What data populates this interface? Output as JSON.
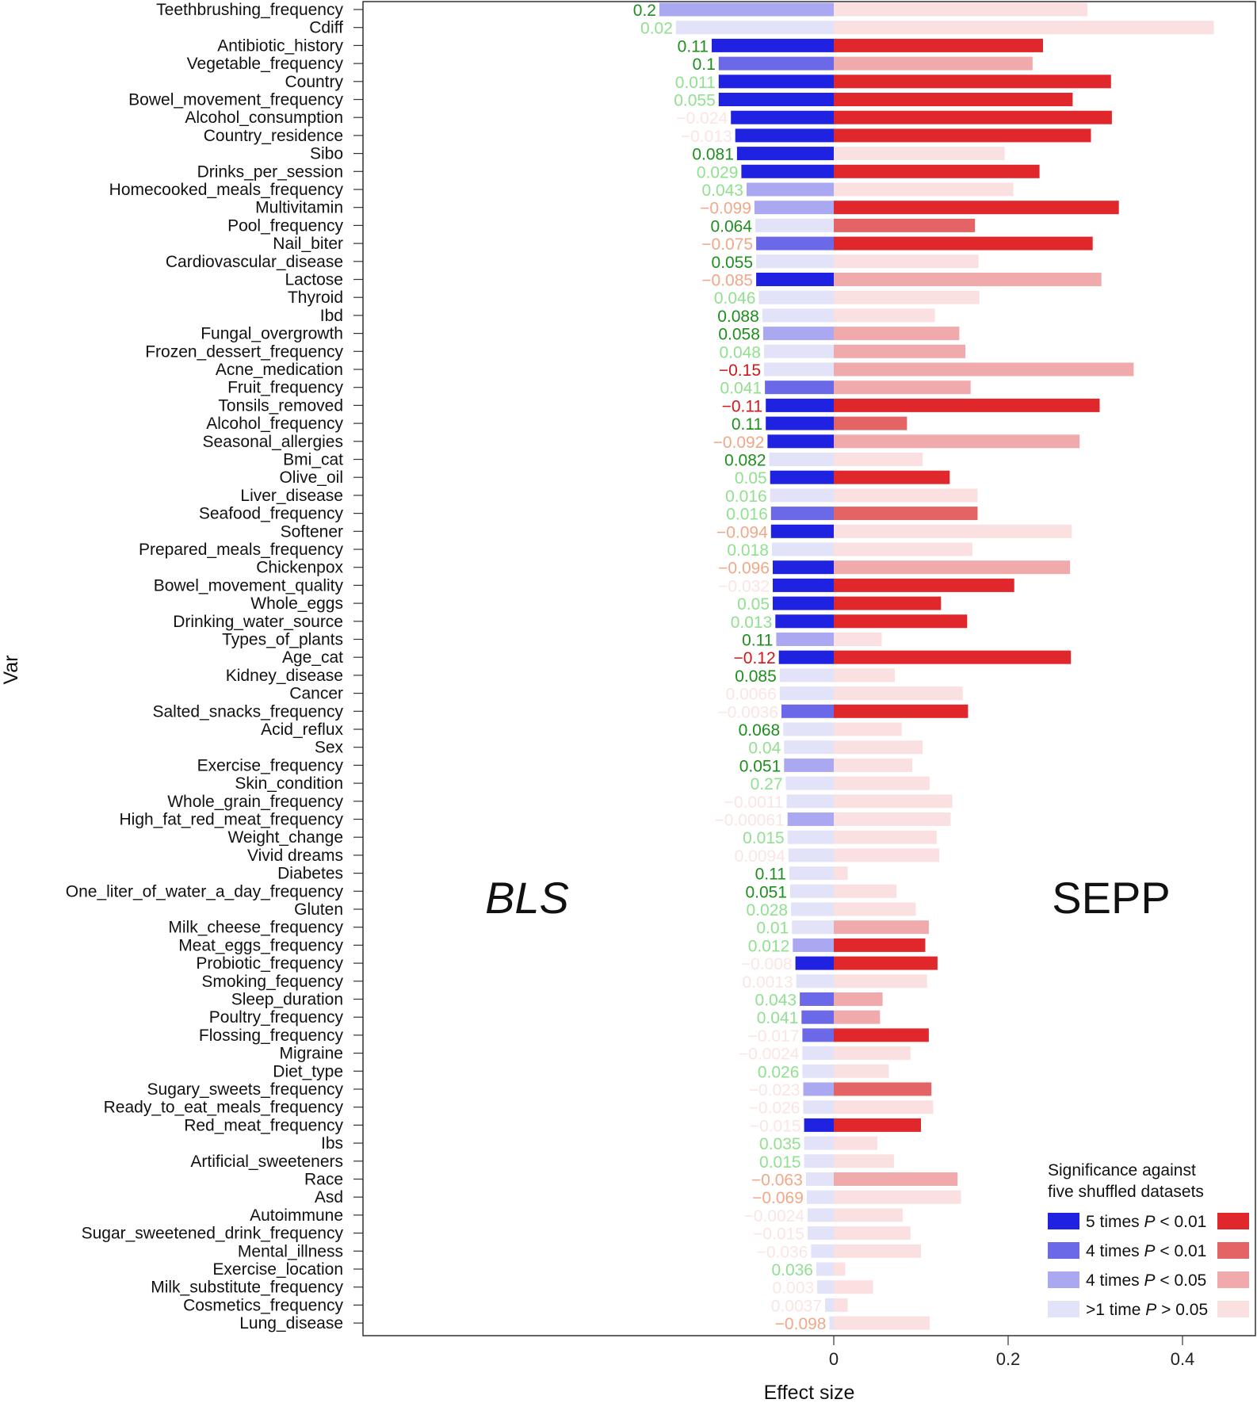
{
  "chart_data": {
    "type": "bar",
    "orientation": "horizontal-diverging",
    "ylabel": "Var",
    "xlabel": "Effect size",
    "x_ticks": [
      0,
      0.2,
      0.4
    ],
    "x_tick_labels": [
      "0",
      "0.2",
      "0.4"
    ],
    "xlim": [
      -0.545,
      0.48
    ],
    "left_panel_label": "BLS",
    "right_panel_label": "SEPP",
    "legend": {
      "title_line1": "Significance against",
      "title_line2": "five shuffled datasets",
      "entries": [
        {
          "key": "s5",
          "prefix": "5 times ",
          "italic": "P",
          "suffix": " < 0.01",
          "blue": "#1f22e0",
          "red": "#e0282c"
        },
        {
          "key": "s4",
          "prefix": "4 times ",
          "italic": "P",
          "suffix": " < 0.01",
          "blue": "#6b69e8",
          "red": "#e46466"
        },
        {
          "key": "s4b",
          "prefix": "4 times ",
          "italic": "P",
          "suffix": " < 0.05",
          "blue": "#a9a8f1",
          "red": "#f1aaac"
        },
        {
          "key": "s1",
          "prefix": ">1 time ",
          "italic": "P",
          "suffix": " > 0.05",
          "blue": "#e2e2f9",
          "red": "#fbe0e1"
        }
      ]
    },
    "coef_colors": {
      "green_dark": "#1e8f1e",
      "green_light": "#90e090",
      "red_dark": "#d01818",
      "red_light": "#f0a888",
      "red_faint": "#fbe4e4"
    },
    "rows": [
      {
        "name": "Teethbrushing_frequency",
        "bls": -0.2,
        "bls_sig": "s4b",
        "sepp": 0.291,
        "sepp_sig": "s1",
        "coef": "0.2",
        "coef_color": "green_dark"
      },
      {
        "name": "Cdiff",
        "bls": -0.181,
        "bls_sig": "s1",
        "sepp": 0.436,
        "sepp_sig": "s1",
        "coef": "0.02",
        "coef_color": "green_light"
      },
      {
        "name": "Antibiotic_history",
        "bls": -0.14,
        "bls_sig": "s5",
        "sepp": 0.24,
        "sepp_sig": "s5",
        "coef": "0.11",
        "coef_color": "green_dark"
      },
      {
        "name": "Vegetable_frequency",
        "bls": -0.132,
        "bls_sig": "s4",
        "sepp": 0.228,
        "sepp_sig": "s4b",
        "coef": "0.1",
        "coef_color": "green_dark"
      },
      {
        "name": "Country",
        "bls": -0.132,
        "bls_sig": "s5",
        "sepp": 0.318,
        "sepp_sig": "s5",
        "coef": "0.011",
        "coef_color": "green_light"
      },
      {
        "name": "Bowel_movement_frequency",
        "bls": -0.132,
        "bls_sig": "s5",
        "sepp": 0.274,
        "sepp_sig": "s5",
        "coef": "0.055",
        "coef_color": "green_light"
      },
      {
        "name": "Alcohol_consumption",
        "bls": -0.118,
        "bls_sig": "s5",
        "sepp": 0.319,
        "sepp_sig": "s5",
        "coef": "−0.024",
        "coef_color": "red_faint"
      },
      {
        "name": "Country_residence",
        "bls": -0.113,
        "bls_sig": "s5",
        "sepp": 0.295,
        "sepp_sig": "s5",
        "coef": "−0.013",
        "coef_color": "red_faint"
      },
      {
        "name": "Sibo",
        "bls": -0.111,
        "bls_sig": "s5",
        "sepp": 0.196,
        "sepp_sig": "s1",
        "coef": "0.081",
        "coef_color": "green_dark"
      },
      {
        "name": "Drinks_per_session",
        "bls": -0.106,
        "bls_sig": "s5",
        "sepp": 0.236,
        "sepp_sig": "s5",
        "coef": "0.029",
        "coef_color": "green_light"
      },
      {
        "name": "Homecooked_meals_frequency",
        "bls": -0.1,
        "bls_sig": "s4b",
        "sepp": 0.206,
        "sepp_sig": "s1",
        "coef": "0.043",
        "coef_color": "green_light"
      },
      {
        "name": "Multivitamin",
        "bls": -0.091,
        "bls_sig": "s4b",
        "sepp": 0.327,
        "sepp_sig": "s5",
        "coef": "−0.099",
        "coef_color": "red_light"
      },
      {
        "name": "Pool_frequency",
        "bls": -0.09,
        "bls_sig": "s1",
        "sepp": 0.162,
        "sepp_sig": "s4",
        "coef": "0.064",
        "coef_color": "green_dark"
      },
      {
        "name": "Nail_biter",
        "bls": -0.089,
        "bls_sig": "s4",
        "sepp": 0.297,
        "sepp_sig": "s5",
        "coef": "−0.075",
        "coef_color": "red_light"
      },
      {
        "name": "Cardiovascular_disease",
        "bls": -0.089,
        "bls_sig": "s1",
        "sepp": 0.166,
        "sepp_sig": "s1",
        "coef": "0.055",
        "coef_color": "green_dark"
      },
      {
        "name": "Lactose",
        "bls": -0.089,
        "bls_sig": "s5",
        "sepp": 0.307,
        "sepp_sig": "s4b",
        "coef": "−0.085",
        "coef_color": "red_light"
      },
      {
        "name": "Thyroid",
        "bls": -0.086,
        "bls_sig": "s1",
        "sepp": 0.167,
        "sepp_sig": "s1",
        "coef": "0.046",
        "coef_color": "green_light"
      },
      {
        "name": "Ibd",
        "bls": -0.082,
        "bls_sig": "s1",
        "sepp": 0.116,
        "sepp_sig": "s1",
        "coef": "0.088",
        "coef_color": "green_dark"
      },
      {
        "name": "Fungal_overgrowth",
        "bls": -0.081,
        "bls_sig": "s4b",
        "sepp": 0.144,
        "sepp_sig": "s4b",
        "coef": "0.058",
        "coef_color": "green_dark"
      },
      {
        "name": "Frozen_dessert_frequency",
        "bls": -0.08,
        "bls_sig": "s1",
        "sepp": 0.151,
        "sepp_sig": "s4b",
        "coef": "0.048",
        "coef_color": "green_light"
      },
      {
        "name": "Acne_medication",
        "bls": -0.08,
        "bls_sig": "s1",
        "sepp": 0.344,
        "sepp_sig": "s4b",
        "coef": "−0.15",
        "coef_color": "red_dark"
      },
      {
        "name": "Fruit_frequency",
        "bls": -0.079,
        "bls_sig": "s4",
        "sepp": 0.157,
        "sepp_sig": "s4b",
        "coef": "0.041",
        "coef_color": "green_light"
      },
      {
        "name": "Tonsils_removed",
        "bls": -0.078,
        "bls_sig": "s5",
        "sepp": 0.305,
        "sepp_sig": "s5",
        "coef": "−0.11",
        "coef_color": "red_dark"
      },
      {
        "name": "Alcohol_frequency",
        "bls": -0.078,
        "bls_sig": "s5",
        "sepp": 0.084,
        "sepp_sig": "s4",
        "coef": "0.11",
        "coef_color": "green_dark"
      },
      {
        "name": "Seasonal_allergies",
        "bls": -0.076,
        "bls_sig": "s5",
        "sepp": 0.282,
        "sepp_sig": "s4b",
        "coef": "−0.092",
        "coef_color": "red_light"
      },
      {
        "name": "Bmi_cat",
        "bls": -0.074,
        "bls_sig": "s1",
        "sepp": 0.102,
        "sepp_sig": "s1",
        "coef": "0.082",
        "coef_color": "green_dark"
      },
      {
        "name": "Olive_oil",
        "bls": -0.073,
        "bls_sig": "s5",
        "sepp": 0.133,
        "sepp_sig": "s5",
        "coef": "0.05",
        "coef_color": "green_light"
      },
      {
        "name": "Liver_disease",
        "bls": -0.073,
        "bls_sig": "s1",
        "sepp": 0.165,
        "sepp_sig": "s1",
        "coef": "0.016",
        "coef_color": "green_light"
      },
      {
        "name": "Seafood_frequency",
        "bls": -0.072,
        "bls_sig": "s4",
        "sepp": 0.165,
        "sepp_sig": "s4",
        "coef": "0.016",
        "coef_color": "green_light"
      },
      {
        "name": "Softener",
        "bls": -0.072,
        "bls_sig": "s5",
        "sepp": 0.273,
        "sepp_sig": "s1",
        "coef": "−0.094",
        "coef_color": "red_light"
      },
      {
        "name": "Prepared_meals_frequency",
        "bls": -0.071,
        "bls_sig": "s1",
        "sepp": 0.159,
        "sepp_sig": "s1",
        "coef": "0.018",
        "coef_color": "green_light"
      },
      {
        "name": "Chickenpox",
        "bls": -0.07,
        "bls_sig": "s5",
        "sepp": 0.271,
        "sepp_sig": "s4b",
        "coef": "−0.096",
        "coef_color": "red_light"
      },
      {
        "name": "Bowel_movement_quality",
        "bls": -0.07,
        "bls_sig": "s5",
        "sepp": 0.207,
        "sepp_sig": "s5",
        "coef": "−0.032",
        "coef_color": "red_faint"
      },
      {
        "name": "Whole_eggs",
        "bls": -0.07,
        "bls_sig": "s5",
        "sepp": 0.123,
        "sepp_sig": "s5",
        "coef": "0.05",
        "coef_color": "green_light"
      },
      {
        "name": "Drinking_water_source",
        "bls": -0.067,
        "bls_sig": "s5",
        "sepp": 0.153,
        "sepp_sig": "s5",
        "coef": "0.013",
        "coef_color": "green_light"
      },
      {
        "name": "Types_of_plants",
        "bls": -0.066,
        "bls_sig": "s4b",
        "sepp": 0.055,
        "sepp_sig": "s1",
        "coef": "0.11",
        "coef_color": "green_dark"
      },
      {
        "name": "Age_cat",
        "bls": -0.063,
        "bls_sig": "s5",
        "sepp": 0.272,
        "sepp_sig": "s5",
        "coef": "−0.12",
        "coef_color": "red_dark"
      },
      {
        "name": "Kidney_disease",
        "bls": -0.062,
        "bls_sig": "s1",
        "sepp": 0.07,
        "sepp_sig": "s1",
        "coef": "0.085",
        "coef_color": "green_dark"
      },
      {
        "name": "Cancer",
        "bls": -0.062,
        "bls_sig": "s1",
        "sepp": 0.148,
        "sepp_sig": "s1",
        "coef": "0.0066",
        "coef_color": "red_faint"
      },
      {
        "name": "Salted_snacks_frequency",
        "bls": -0.06,
        "bls_sig": "s4",
        "sepp": 0.154,
        "sepp_sig": "s5",
        "coef": "−0.0036",
        "coef_color": "red_faint"
      },
      {
        "name": "Acid_reflux",
        "bls": -0.058,
        "bls_sig": "s1",
        "sepp": 0.078,
        "sepp_sig": "s1",
        "coef": "0.068",
        "coef_color": "green_dark"
      },
      {
        "name": "Sex",
        "bls": -0.057,
        "bls_sig": "s1",
        "sepp": 0.102,
        "sepp_sig": "s1",
        "coef": "0.04",
        "coef_color": "green_light"
      },
      {
        "name": "Exercise_frequency",
        "bls": -0.057,
        "bls_sig": "s4b",
        "sepp": 0.09,
        "sepp_sig": "s1",
        "coef": "0.051",
        "coef_color": "green_dark"
      },
      {
        "name": "Skin_condition",
        "bls": -0.055,
        "bls_sig": "s1",
        "sepp": 0.11,
        "sepp_sig": "s1",
        "coef": "0.27",
        "coef_color": "green_light"
      },
      {
        "name": "Whole_grain_frequency",
        "bls": -0.054,
        "bls_sig": "s1",
        "sepp": 0.136,
        "sepp_sig": "s1",
        "coef": "−0.0011",
        "coef_color": "red_faint"
      },
      {
        "name": "High_fat_red_meat_frequency",
        "bls": -0.053,
        "bls_sig": "s4b",
        "sepp": 0.134,
        "sepp_sig": "s1",
        "coef": "−0.00061",
        "coef_color": "red_faint"
      },
      {
        "name": "Weight_change",
        "bls": -0.053,
        "bls_sig": "s1",
        "sepp": 0.118,
        "sepp_sig": "s1",
        "coef": "0.015",
        "coef_color": "green_light"
      },
      {
        "name": "Vivid dreams",
        "bls": -0.052,
        "bls_sig": "s1",
        "sepp": 0.121,
        "sepp_sig": "s1",
        "coef": "0.0094",
        "coef_color": "red_faint"
      },
      {
        "name": "Diabetes",
        "bls": -0.051,
        "bls_sig": "s1",
        "sepp": 0.016,
        "sepp_sig": "s1",
        "coef": "0.11",
        "coef_color": "green_dark"
      },
      {
        "name": "One_liter_of_water_a_day_frequency",
        "bls": -0.05,
        "bls_sig": "s1",
        "sepp": 0.072,
        "sepp_sig": "s1",
        "coef": "0.051",
        "coef_color": "green_dark"
      },
      {
        "name": "Gluten",
        "bls": -0.049,
        "bls_sig": "s1",
        "sepp": 0.094,
        "sepp_sig": "s1",
        "coef": "0.028",
        "coef_color": "green_light"
      },
      {
        "name": "Milk_cheese_frequency",
        "bls": -0.048,
        "bls_sig": "s1",
        "sepp": 0.109,
        "sepp_sig": "s4b",
        "coef": "0.01",
        "coef_color": "green_light"
      },
      {
        "name": "Meat_eggs_frequency",
        "bls": -0.047,
        "bls_sig": "s4b",
        "sepp": 0.105,
        "sepp_sig": "s5",
        "coef": "0.012",
        "coef_color": "green_light"
      },
      {
        "name": "Probiotic_frequency",
        "bls": -0.044,
        "bls_sig": "s5",
        "sepp": 0.119,
        "sepp_sig": "s5",
        "coef": "−0.008",
        "coef_color": "red_faint"
      },
      {
        "name": "Smoking_fequency",
        "bls": -0.043,
        "bls_sig": "s1",
        "sepp": 0.107,
        "sepp_sig": "s1",
        "coef": "0.0013",
        "coef_color": "red_faint"
      },
      {
        "name": "Sleep_duration",
        "bls": -0.039,
        "bls_sig": "s4",
        "sepp": 0.056,
        "sepp_sig": "s4b",
        "coef": "0.043",
        "coef_color": "green_light"
      },
      {
        "name": "Poultry_frequency",
        "bls": -0.037,
        "bls_sig": "s4",
        "sepp": 0.053,
        "sepp_sig": "s4b",
        "coef": "0.041",
        "coef_color": "green_light"
      },
      {
        "name": "Flossing_frequency",
        "bls": -0.036,
        "bls_sig": "s4",
        "sepp": 0.109,
        "sepp_sig": "s5",
        "coef": "−0.017",
        "coef_color": "red_faint"
      },
      {
        "name": "Migraine",
        "bls": -0.036,
        "bls_sig": "s1",
        "sepp": 0.088,
        "sepp_sig": "s1",
        "coef": "−0.0024",
        "coef_color": "red_faint"
      },
      {
        "name": "Diet_type",
        "bls": -0.036,
        "bls_sig": "s1",
        "sepp": 0.063,
        "sepp_sig": "s1",
        "coef": "0.026",
        "coef_color": "green_light"
      },
      {
        "name": "Sugary_sweets_frequency",
        "bls": -0.035,
        "bls_sig": "s4b",
        "sepp": 0.112,
        "sepp_sig": "s4",
        "coef": "−0.023",
        "coef_color": "red_faint"
      },
      {
        "name": "Ready_to_eat_meals_frequency",
        "bls": -0.035,
        "bls_sig": "s1",
        "sepp": 0.114,
        "sepp_sig": "s1",
        "coef": "−0.026",
        "coef_color": "red_faint"
      },
      {
        "name": "Red_meat_frequency",
        "bls": -0.034,
        "bls_sig": "s5",
        "sepp": 0.1,
        "sepp_sig": "s5",
        "coef": "−0.015",
        "coef_color": "red_faint"
      },
      {
        "name": "Ibs",
        "bls": -0.034,
        "bls_sig": "s1",
        "sepp": 0.05,
        "sepp_sig": "s1",
        "coef": "0.035",
        "coef_color": "green_light"
      },
      {
        "name": "Artificial_sweeteners",
        "bls": -0.034,
        "bls_sig": "s1",
        "sepp": 0.069,
        "sepp_sig": "s1",
        "coef": "0.015",
        "coef_color": "green_light"
      },
      {
        "name": "Race",
        "bls": -0.032,
        "bls_sig": "s1",
        "sepp": 0.142,
        "sepp_sig": "s4b",
        "coef": "−0.063",
        "coef_color": "red_light"
      },
      {
        "name": "Asd",
        "bls": -0.031,
        "bls_sig": "s1",
        "sepp": 0.146,
        "sepp_sig": "s1",
        "coef": "−0.069",
        "coef_color": "red_light"
      },
      {
        "name": "Autoimmune",
        "bls": -0.03,
        "bls_sig": "s1",
        "sepp": 0.079,
        "sepp_sig": "s1",
        "coef": "−0.0024",
        "coef_color": "red_faint"
      },
      {
        "name": "Sugar_sweetened_drink_frequency",
        "bls": -0.03,
        "bls_sig": "s1",
        "sepp": 0.088,
        "sepp_sig": "s1",
        "coef": "−0.015",
        "coef_color": "red_faint"
      },
      {
        "name": "Mental_illness",
        "bls": -0.026,
        "bls_sig": "s1",
        "sepp": 0.1,
        "sepp_sig": "s1",
        "coef": "−0.036",
        "coef_color": "red_faint"
      },
      {
        "name": "Exercise_location",
        "bls": -0.02,
        "bls_sig": "s1",
        "sepp": 0.013,
        "sepp_sig": "s1",
        "coef": "0.036",
        "coef_color": "green_light"
      },
      {
        "name": "Milk_substitute_frequency",
        "bls": -0.019,
        "bls_sig": "s1",
        "sepp": 0.045,
        "sepp_sig": "s1",
        "coef": "0.003",
        "coef_color": "red_faint"
      },
      {
        "name": "Cosmetics_frequency",
        "bls": -0.01,
        "bls_sig": "s1",
        "sepp": 0.016,
        "sepp_sig": "s1",
        "coef": "0.0037",
        "coef_color": "red_faint"
      },
      {
        "name": "Lung_disease",
        "bls": -0.005,
        "bls_sig": "s1",
        "sepp": 0.11,
        "sepp_sig": "s1",
        "coef": "−0.098",
        "coef_color": "red_light"
      }
    ]
  }
}
